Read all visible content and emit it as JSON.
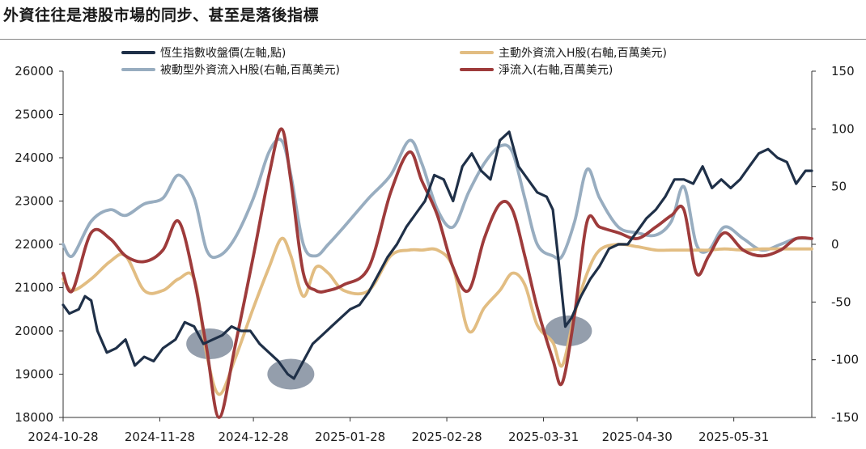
{
  "title": "外資往往是港股市場的同步、甚至是落後指標",
  "colors": {
    "hsi": "#1f3048",
    "active": "#e2bd82",
    "passive": "#98adc0",
    "net": "#9e3b3b",
    "highlight": "#4c5d75"
  },
  "chart_data": {
    "type": "line",
    "title": "外資往往是港股市場的同步、甚至是落後指標",
    "grid": false,
    "legend_position": "top",
    "x_axis": {
      "range": [
        "2024-10-28",
        "2025-06-25"
      ],
      "tick_labels": [
        "2024-10-28",
        "2024-11-28",
        "2024-12-28",
        "2025-01-28",
        "2025-02-28",
        "2025-03-31",
        "2025-04-30",
        "2025-05-31"
      ]
    },
    "y_left": {
      "range": [
        18000,
        26000
      ],
      "ticks": [
        18000,
        19000,
        20000,
        21000,
        22000,
        23000,
        24000,
        25000,
        26000
      ]
    },
    "y_right": {
      "range": [
        -150,
        150
      ],
      "ticks": [
        -150,
        -100,
        -50,
        0,
        50,
        100,
        150
      ]
    },
    "series": [
      {
        "name": "恆生指數收盤價(左軸,點)",
        "axis": "left",
        "color_key": "hsi",
        "points": [
          [
            "2024-10-28",
            20600
          ],
          [
            "2024-10-30",
            20400
          ],
          [
            "2024-11-02",
            20500
          ],
          [
            "2024-11-04",
            20800
          ],
          [
            "2024-11-06",
            20700
          ],
          [
            "2024-11-08",
            20000
          ],
          [
            "2024-11-11",
            19500
          ],
          [
            "2024-11-14",
            19600
          ],
          [
            "2024-11-17",
            19800
          ],
          [
            "2024-11-20",
            19200
          ],
          [
            "2024-11-23",
            19400
          ],
          [
            "2024-11-26",
            19300
          ],
          [
            "2024-11-29",
            19600
          ],
          [
            "2024-12-03",
            19800
          ],
          [
            "2024-12-06",
            20200
          ],
          [
            "2024-12-09",
            20100
          ],
          [
            "2024-12-12",
            19700
          ],
          [
            "2024-12-15",
            19800
          ],
          [
            "2024-12-18",
            19900
          ],
          [
            "2024-12-21",
            20100
          ],
          [
            "2024-12-24",
            20000
          ],
          [
            "2024-12-27",
            20000
          ],
          [
            "2024-12-30",
            19700
          ],
          [
            "2025-01-02",
            19500
          ],
          [
            "2025-01-05",
            19300
          ],
          [
            "2025-01-08",
            19000
          ],
          [
            "2025-01-10",
            18900
          ],
          [
            "2025-01-13",
            19300
          ],
          [
            "2025-01-16",
            19700
          ],
          [
            "2025-01-19",
            19900
          ],
          [
            "2025-01-22",
            20100
          ],
          [
            "2025-01-25",
            20300
          ],
          [
            "2025-01-28",
            20500
          ],
          [
            "2025-01-31",
            20600
          ],
          [
            "2025-02-03",
            20900
          ],
          [
            "2025-02-06",
            21300
          ],
          [
            "2025-02-09",
            21700
          ],
          [
            "2025-02-12",
            22000
          ],
          [
            "2025-02-15",
            22400
          ],
          [
            "2025-02-18",
            22700
          ],
          [
            "2025-02-21",
            23000
          ],
          [
            "2025-02-24",
            23600
          ],
          [
            "2025-02-27",
            23500
          ],
          [
            "2025-03-02",
            23000
          ],
          [
            "2025-03-05",
            23800
          ],
          [
            "2025-03-08",
            24100
          ],
          [
            "2025-03-11",
            23700
          ],
          [
            "2025-03-14",
            23500
          ],
          [
            "2025-03-17",
            24400
          ],
          [
            "2025-03-20",
            24600
          ],
          [
            "2025-03-23",
            23800
          ],
          [
            "2025-03-26",
            23500
          ],
          [
            "2025-03-29",
            23200
          ],
          [
            "2025-04-01",
            23100
          ],
          [
            "2025-04-03",
            22800
          ],
          [
            "2025-04-05",
            21500
          ],
          [
            "2025-04-07",
            20100
          ],
          [
            "2025-04-09",
            20300
          ],
          [
            "2025-04-12",
            20800
          ],
          [
            "2025-04-15",
            21200
          ],
          [
            "2025-04-18",
            21500
          ],
          [
            "2025-04-21",
            21900
          ],
          [
            "2025-04-24",
            22000
          ],
          [
            "2025-04-27",
            22000
          ],
          [
            "2025-04-30",
            22300
          ],
          [
            "2025-05-03",
            22600
          ],
          [
            "2025-05-06",
            22800
          ],
          [
            "2025-05-09",
            23100
          ],
          [
            "2025-05-12",
            23500
          ],
          [
            "2025-05-15",
            23500
          ],
          [
            "2025-05-18",
            23400
          ],
          [
            "2025-05-21",
            23800
          ],
          [
            "2025-05-24",
            23300
          ],
          [
            "2025-05-27",
            23500
          ],
          [
            "2025-05-30",
            23300
          ],
          [
            "2025-06-02",
            23500
          ],
          [
            "2025-06-05",
            23800
          ],
          [
            "2025-06-08",
            24100
          ],
          [
            "2025-06-11",
            24200
          ],
          [
            "2025-06-14",
            24000
          ],
          [
            "2025-06-17",
            23900
          ],
          [
            "2025-06-20",
            23400
          ],
          [
            "2025-06-23",
            23700
          ],
          [
            "2025-06-25",
            23700
          ]
        ]
      },
      {
        "name": "被動型外資流入H股(右軸,百萬美元)",
        "axis": "right",
        "color_key": "passive",
        "points": [
          [
            "2024-10-28",
            0
          ],
          [
            "2024-10-31",
            -10
          ],
          [
            "2024-11-06",
            20
          ],
          [
            "2024-11-12",
            30
          ],
          [
            "2024-11-17",
            25
          ],
          [
            "2024-11-23",
            35
          ],
          [
            "2024-11-29",
            40
          ],
          [
            "2024-12-04",
            60
          ],
          [
            "2024-12-09",
            40
          ],
          [
            "2024-12-13",
            -5
          ],
          [
            "2024-12-17",
            -10
          ],
          [
            "2024-12-22",
            5
          ],
          [
            "2024-12-28",
            40
          ],
          [
            "2025-01-02",
            80
          ],
          [
            "2025-01-06",
            90
          ],
          [
            "2025-01-09",
            60
          ],
          [
            "2025-01-13",
            0
          ],
          [
            "2025-01-17",
            -10
          ],
          [
            "2025-01-21",
            0
          ],
          [
            "2025-01-26",
            15
          ],
          [
            "2025-02-03",
            40
          ],
          [
            "2025-02-10",
            60
          ],
          [
            "2025-02-16",
            90
          ],
          [
            "2025-02-20",
            70
          ],
          [
            "2025-02-25",
            30
          ],
          [
            "2025-03-02",
            15
          ],
          [
            "2025-03-07",
            45
          ],
          [
            "2025-03-12",
            70
          ],
          [
            "2025-03-17",
            85
          ],
          [
            "2025-03-21",
            80
          ],
          [
            "2025-03-25",
            40
          ],
          [
            "2025-03-29",
            0
          ],
          [
            "2025-04-03",
            -10
          ],
          [
            "2025-04-06",
            -10
          ],
          [
            "2025-04-10",
            20
          ],
          [
            "2025-04-14",
            65
          ],
          [
            "2025-04-18",
            40
          ],
          [
            "2025-04-24",
            15
          ],
          [
            "2025-04-30",
            10
          ],
          [
            "2025-05-06",
            8
          ],
          [
            "2025-05-11",
            20
          ],
          [
            "2025-05-15",
            50
          ],
          [
            "2025-05-19",
            0
          ],
          [
            "2025-05-23",
            -5
          ],
          [
            "2025-05-28",
            15
          ],
          [
            "2025-06-03",
            5
          ],
          [
            "2025-06-09",
            -5
          ],
          [
            "2025-06-15",
            0
          ],
          [
            "2025-06-20",
            5
          ],
          [
            "2025-06-25",
            5
          ]
        ]
      },
      {
        "name": "主動外資流入H股(右軸,百萬美元)",
        "axis": "right",
        "color_key": "active",
        "points": [
          [
            "2024-10-28",
            -30
          ],
          [
            "2024-10-31",
            -40
          ],
          [
            "2024-11-06",
            -30
          ],
          [
            "2024-11-12",
            -15
          ],
          [
            "2024-11-17",
            -10
          ],
          [
            "2024-11-23",
            -40
          ],
          [
            "2024-11-29",
            -40
          ],
          [
            "2024-12-04",
            -30
          ],
          [
            "2024-12-09",
            -30
          ],
          [
            "2024-12-13",
            -95
          ],
          [
            "2024-12-17",
            -130
          ],
          [
            "2024-12-22",
            -100
          ],
          [
            "2024-12-28",
            -55
          ],
          [
            "2025-01-02",
            -20
          ],
          [
            "2025-01-06",
            5
          ],
          [
            "2025-01-09",
            -10
          ],
          [
            "2025-01-13",
            -45
          ],
          [
            "2025-01-17",
            -20
          ],
          [
            "2025-01-21",
            -25
          ],
          [
            "2025-01-26",
            -40
          ],
          [
            "2025-02-03",
            -40
          ],
          [
            "2025-02-10",
            -10
          ],
          [
            "2025-02-16",
            -5
          ],
          [
            "2025-02-20",
            -5
          ],
          [
            "2025-02-25",
            -5
          ],
          [
            "2025-03-02",
            -20
          ],
          [
            "2025-03-07",
            -75
          ],
          [
            "2025-03-12",
            -55
          ],
          [
            "2025-03-17",
            -40
          ],
          [
            "2025-03-21",
            -25
          ],
          [
            "2025-03-25",
            -35
          ],
          [
            "2025-03-29",
            -70
          ],
          [
            "2025-04-03",
            -85
          ],
          [
            "2025-04-06",
            -105
          ],
          [
            "2025-04-10",
            -60
          ],
          [
            "2025-04-14",
            -25
          ],
          [
            "2025-04-18",
            -5
          ],
          [
            "2025-04-24",
            0
          ],
          [
            "2025-04-30",
            -2
          ],
          [
            "2025-05-06",
            -5
          ],
          [
            "2025-05-11",
            -5
          ],
          [
            "2025-05-15",
            -5
          ],
          [
            "2025-05-19",
            -5
          ],
          [
            "2025-05-23",
            -5
          ],
          [
            "2025-05-28",
            -4
          ],
          [
            "2025-06-03",
            -5
          ],
          [
            "2025-06-09",
            -4
          ],
          [
            "2025-06-15",
            -4
          ],
          [
            "2025-06-20",
            -4
          ],
          [
            "2025-06-25",
            -4
          ]
        ]
      },
      {
        "name": "淨流入(右軸,百萬美元)",
        "axis": "right",
        "color_key": "net",
        "points": [
          [
            "2024-10-28",
            -25
          ],
          [
            "2024-10-31",
            -40
          ],
          [
            "2024-11-06",
            10
          ],
          [
            "2024-11-12",
            5
          ],
          [
            "2024-11-17",
            -10
          ],
          [
            "2024-11-23",
            -15
          ],
          [
            "2024-11-29",
            -5
          ],
          [
            "2024-12-04",
            20
          ],
          [
            "2024-12-09",
            -30
          ],
          [
            "2024-12-13",
            -90
          ],
          [
            "2024-12-17",
            -150
          ],
          [
            "2024-12-22",
            -90
          ],
          [
            "2024-12-28",
            -10
          ],
          [
            "2025-01-02",
            60
          ],
          [
            "2025-01-06",
            100
          ],
          [
            "2025-01-09",
            55
          ],
          [
            "2025-01-13",
            -25
          ],
          [
            "2025-01-17",
            -40
          ],
          [
            "2025-01-21",
            -40
          ],
          [
            "2025-01-26",
            -35
          ],
          [
            "2025-02-03",
            -20
          ],
          [
            "2025-02-10",
            45
          ],
          [
            "2025-02-16",
            80
          ],
          [
            "2025-02-20",
            55
          ],
          [
            "2025-02-25",
            25
          ],
          [
            "2025-03-02",
            -20
          ],
          [
            "2025-03-07",
            -40
          ],
          [
            "2025-03-12",
            5
          ],
          [
            "2025-03-17",
            35
          ],
          [
            "2025-03-21",
            30
          ],
          [
            "2025-03-25",
            -10
          ],
          [
            "2025-03-29",
            -55
          ],
          [
            "2025-04-03",
            -100
          ],
          [
            "2025-04-06",
            -120
          ],
          [
            "2025-04-10",
            -60
          ],
          [
            "2025-04-14",
            20
          ],
          [
            "2025-04-18",
            15
          ],
          [
            "2025-04-24",
            10
          ],
          [
            "2025-04-30",
            5
          ],
          [
            "2025-05-06",
            15
          ],
          [
            "2025-05-11",
            25
          ],
          [
            "2025-05-15",
            30
          ],
          [
            "2025-05-19",
            -25
          ],
          [
            "2025-05-23",
            -10
          ],
          [
            "2025-05-28",
            10
          ],
          [
            "2025-06-03",
            -5
          ],
          [
            "2025-06-09",
            -10
          ],
          [
            "2025-06-15",
            -5
          ],
          [
            "2025-06-20",
            5
          ],
          [
            "2025-06-25",
            5
          ]
        ]
      }
    ],
    "highlights": [
      {
        "x": "2024-12-14",
        "y_left": 19700
      },
      {
        "x": "2025-01-09",
        "y_left": 19000
      },
      {
        "x": "2025-04-08",
        "y_left": 20000
      }
    ]
  }
}
